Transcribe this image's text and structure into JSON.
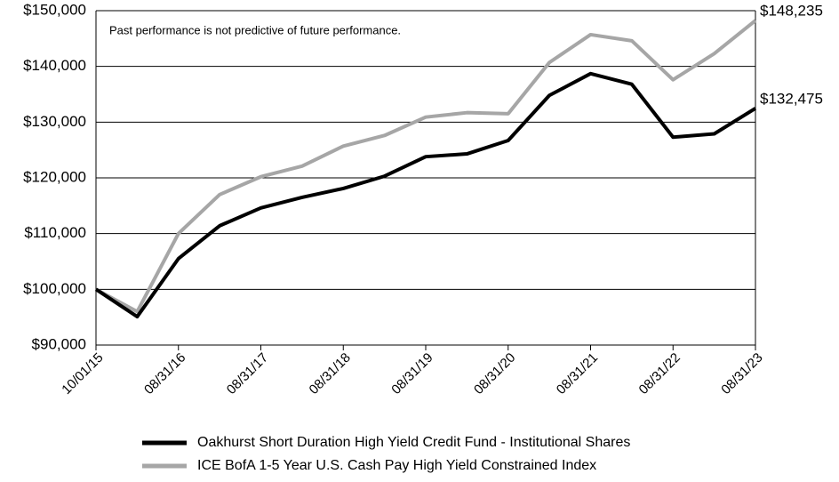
{
  "chart_data": {
    "type": "line",
    "annotation": "Past performance is not predictive of future performance.",
    "categories": [
      "10/01/15",
      null,
      "08/31/16",
      null,
      "08/31/17",
      null,
      "08/31/18",
      null,
      "08/31/19",
      null,
      "08/31/20",
      null,
      "08/31/21",
      null,
      "08/31/22",
      null,
      "08/31/23"
    ],
    "series": [
      {
        "name": "Oakhurst Short Duration High Yield Credit Fund - Institutional Shares",
        "color": "#000000",
        "values": [
          100000,
          95100,
          105500,
          111400,
          114600,
          116500,
          118100,
          120300,
          123800,
          124300,
          126700,
          134800,
          138700,
          136800,
          127300,
          127900,
          132475
        ],
        "value_labels": [
          null,
          null,
          null,
          null,
          null,
          null,
          null,
          null,
          null,
          null,
          null,
          null,
          null,
          null,
          null,
          null,
          "$132,475"
        ]
      },
      {
        "name": "ICE BofA 1-5 Year U.S. Cash Pay High Yield Constrained Index",
        "color": "#a6a6a6",
        "values": [
          100000,
          96000,
          110000,
          117000,
          120200,
          122100,
          125700,
          127600,
          130900,
          131700,
          131500,
          140700,
          145700,
          144600,
          137600,
          142300,
          148235
        ],
        "value_labels": [
          null,
          null,
          null,
          null,
          null,
          null,
          null,
          null,
          null,
          null,
          null,
          null,
          null,
          null,
          null,
          null,
          "$148,235"
        ]
      }
    ],
    "ylim": [
      90000,
      150000
    ],
    "yticks": [
      {
        "value": 90000,
        "label": "$90,000"
      },
      {
        "value": 100000,
        "label": "$100,000"
      },
      {
        "value": 110000,
        "label": "$110,000"
      },
      {
        "value": 120000,
        "label": "$120,000"
      },
      {
        "value": 130000,
        "label": "$130,000"
      },
      {
        "value": 140000,
        "label": "$140,000"
      },
      {
        "value": 150000,
        "label": "$150,000"
      }
    ],
    "grid": true,
    "legend": "bottom"
  }
}
